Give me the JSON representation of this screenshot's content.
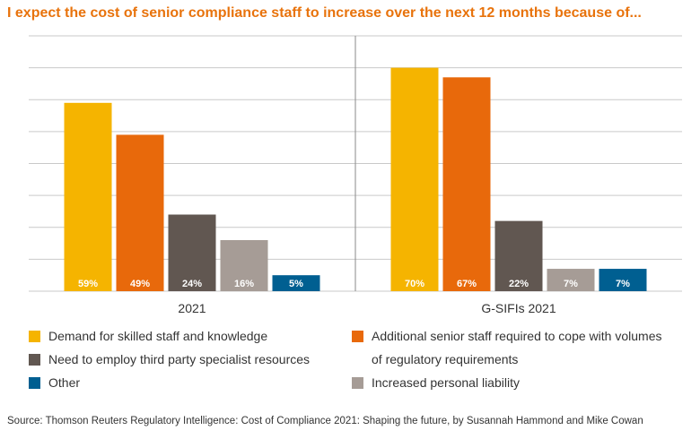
{
  "title": "I expect the cost of senior compliance staff to increase over the next 12 months because of...",
  "chart_data": {
    "type": "bar",
    "title": "I expect the cost of senior compliance staff to increase over the next 12 months because of...",
    "categories": [
      "2021",
      "G-SIFIs 2021"
    ],
    "series": [
      {
        "name": "Demand for skilled staff and knowledge",
        "color": "#f5b400",
        "values": [
          59,
          70
        ],
        "labels": [
          "59%",
          "70%"
        ]
      },
      {
        "name": "Additional senior staff required to cope with volumes of regulatory requirements",
        "color": "#e8690b",
        "values": [
          49,
          67
        ],
        "labels": [
          "49%",
          "67%"
        ]
      },
      {
        "name": "Need to employ third party specialist resources",
        "color": "#615751",
        "values": [
          24,
          22
        ],
        "labels": [
          "24%",
          "22%"
        ]
      },
      {
        "name": "Increased personal liability",
        "color": "#a69c96",
        "values": [
          16,
          7
        ],
        "labels": [
          "16%",
          "7%"
        ]
      },
      {
        "name": "Other",
        "color": "#005f91",
        "values": [
          5,
          7
        ],
        "labels": [
          "5%",
          "7%"
        ]
      }
    ],
    "ylim": [
      0,
      80
    ],
    "grid": true,
    "xlabel": "",
    "ylabel": "",
    "legend_position": "bottom"
  },
  "legend": {
    "demand": "Demand for skilled staff and knowledge",
    "additional_line1": "Additional senior staff required to cope with volumes",
    "additional_line2": "of regulatory requirements",
    "third_party": "Need to employ third party specialist resources",
    "other": "Other",
    "liability": "Increased personal liability"
  },
  "colors": {
    "title": "#e8730c",
    "grid": "#c9c9c9",
    "divider": "#8a8a8a"
  },
  "source": "Source: Thomson Reuters Regulatory Intelligence: Cost of Compliance 2021: Shaping the future, by Susannah Hammond and Mike Cowan"
}
